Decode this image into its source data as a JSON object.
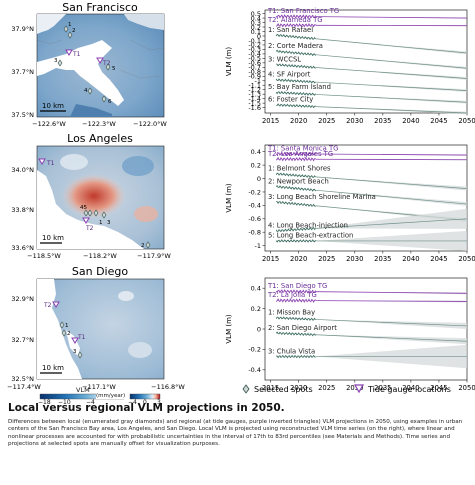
{
  "maps": [
    {
      "title": "San Francisco",
      "lat_ticks": [
        "37.9°N",
        "37.7°N",
        "37.5°N"
      ],
      "lon_ticks": [
        "−122.6°W",
        "−122.3°W",
        "−122.0°W"
      ],
      "scale_label": "10 km",
      "spot_labels": [
        "1",
        "2",
        "3",
        "4",
        "5",
        "6"
      ],
      "gauge_labels": [
        "T1",
        "T2"
      ]
    },
    {
      "title": "Los Angeles",
      "lat_ticks": [
        "34.0°N",
        "33.8°N",
        "33.6°N"
      ],
      "lon_ticks": [
        "−118.5°W",
        "−118.2°W",
        "−117.9°W"
      ],
      "scale_label": "10 km",
      "spot_labels": [
        "1",
        "2",
        "3",
        "45"
      ],
      "gauge_labels": [
        "T1",
        "T2"
      ]
    },
    {
      "title": "San Diego",
      "lat_ticks": [
        "32.9°N",
        "32.7°N",
        "32.5°N"
      ],
      "lon_ticks": [
        "−117.4°W",
        "−117.1°W",
        "−116.8°W"
      ],
      "scale_label": "10 km",
      "spot_labels": [
        "1",
        "2",
        "3"
      ],
      "gauge_labels": [
        "T1",
        "T2"
      ]
    }
  ],
  "colorbar": {
    "label": "VLM",
    "unit": "(mm/year)",
    "ticks": [
      "−18",
      "−10",
      "−4",
      "−4",
      "0",
      "3"
    ]
  },
  "chart_data": [
    {
      "type": "line",
      "ylabel": "VLM (m)",
      "xlim": [
        2014,
        2050
      ],
      "x_ticks": [
        2015,
        2020,
        2025,
        2030,
        2035,
        2040,
        2045,
        2050
      ],
      "ylim": [
        -1.72,
        0.58
      ],
      "y_ticks": [
        0.5,
        0.4,
        0.3,
        0.2,
        0.1,
        0.0,
        -0.1,
        -0.2,
        -0.3,
        -0.4,
        -0.5,
        -0.6,
        -0.7,
        -0.8,
        -0.9,
        -1.0,
        -1.1,
        -1.2,
        -1.3,
        -1.4,
        -1.5,
        -1.6
      ],
      "series": [
        {
          "name": "T1: San Francisco TG",
          "kind": "gauge",
          "start": 0.44,
          "end": 0.4
        },
        {
          "name": "T2: Alameda TG",
          "kind": "gauge",
          "start": 0.24,
          "end": 0.23
        },
        {
          "name": "1: San Rafael",
          "kind": "spot",
          "start": 0.02,
          "end": -0.38
        },
        {
          "name": "2: Corte Madera",
          "kind": "spot",
          "start": -0.34,
          "end": -0.72
        },
        {
          "name": "3: WCCSL",
          "kind": "spot",
          "start": -0.64,
          "end": -0.95
        },
        {
          "name": "4: SF Airport",
          "kind": "spot",
          "start": -0.98,
          "end": -1.22
        },
        {
          "name": "5: Bay Farm Island",
          "kind": "spot",
          "start": -1.26,
          "end": -1.48
        },
        {
          "name": "6: Foster City",
          "kind": "spot",
          "start": -1.54,
          "end": -1.72
        }
      ]
    },
    {
      "type": "line",
      "ylabel": "VLM (m)",
      "xlim": [
        2014,
        2050
      ],
      "x_ticks": [
        2015,
        2020,
        2025,
        2030,
        2035,
        2040,
        2045,
        2050
      ],
      "ylim": [
        -1.08,
        0.5
      ],
      "y_ticks": [
        0.4,
        0.2,
        0.0,
        -0.2,
        -0.4,
        -0.6,
        -0.8,
        -1.0
      ],
      "series": [
        {
          "name": "T1: Santa Monica TG",
          "kind": "gauge",
          "start": 0.37,
          "end": 0.35
        },
        {
          "name": "T2: Los Angeles TG",
          "kind": "gauge",
          "start": 0.29,
          "end": 0.28
        },
        {
          "name": "1: Belmont Shores",
          "kind": "spot",
          "start": 0.07,
          "end": -0.15
        },
        {
          "name": "2: Newport Beach",
          "kind": "spot",
          "start": -0.12,
          "end": -0.38
        },
        {
          "name": "3: Long Beach Shoreline Marina",
          "kind": "spot",
          "start": -0.35,
          "end": -0.62
        },
        {
          "name": "4: Long Beach-injection",
          "kind": "spot",
          "start": -0.78,
          "end": -0.6,
          "band": 0.3
        },
        {
          "name": "5: Long Beach-extraction",
          "kind": "spot",
          "start": -0.93,
          "end": -0.93,
          "band": 0.3
        }
      ]
    },
    {
      "type": "line",
      "ylabel": "VLM (m)",
      "xlim": [
        2014,
        2050
      ],
      "x_ticks": [
        2015,
        2020,
        2025,
        2030,
        2035,
        2040,
        2045,
        2050
      ],
      "ylim": [
        -0.5,
        0.5
      ],
      "y_ticks": [
        0.4,
        0.2,
        0.0,
        -0.2,
        -0.4
      ],
      "series": [
        {
          "name": "T1: San Diego TG",
          "kind": "gauge",
          "start": 0.37,
          "end": 0.35
        },
        {
          "name": "T2: La Jolla TG",
          "kind": "gauge",
          "start": 0.28,
          "end": 0.27
        },
        {
          "name": "1: Misson Bay",
          "kind": "spot",
          "start": 0.11,
          "end": 0.03
        },
        {
          "name": "2: San Diego Airport",
          "kind": "spot",
          "start": -0.04,
          "end": -0.12
        },
        {
          "name": "3: Chula Vista",
          "kind": "spot",
          "start": -0.27,
          "end": -0.27,
          "band": 0.23
        }
      ]
    }
  ],
  "legend": {
    "spots_label": "Selected spots",
    "gauges_label": "Tide gauge locations"
  },
  "caption": {
    "title": "Local versus regional VLM projections in 2050.",
    "body": "Differences between local (enumerated gray diamonds) and regional (at tide gauges, purple inverted triangles) VLM projections in 2050, using examples in urban centers of the San Francisco Bay area, Los Angeles, and San Diego. Local VLM is projected using reconstructed VLM time series (on the right), where linear and nonlinear processes are accounted for with probabilistic uncertainties in the interval of 17th to 83rd percentiles (see Materials and Methods). Time series and projections at selected spots are manually offset for visualization purposes."
  },
  "colors": {
    "gauge": "#8a3fb0",
    "spot": "#3e6e62",
    "band": "#d4d9d9",
    "land": "#7aa3c6",
    "water": "#ffffff"
  }
}
